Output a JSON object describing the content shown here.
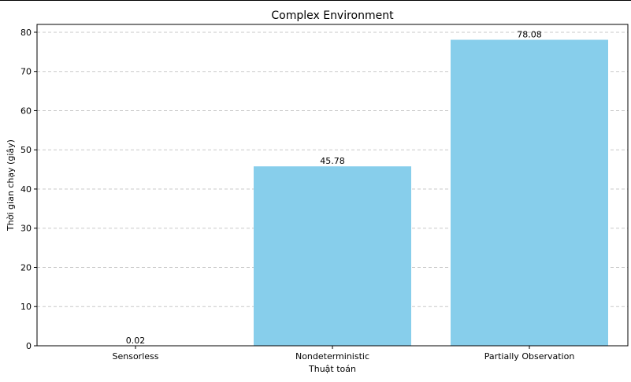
{
  "chart_data": {
    "type": "bar",
    "title": "Complex Environment",
    "xlabel": "Thuật toán",
    "ylabel": "Thời gian chạy (giây)",
    "categories": [
      "Sensorless",
      "Nondeterministic",
      "Partially Observation"
    ],
    "values": [
      0.02,
      45.78,
      78.08
    ],
    "value_labels": [
      "0.02",
      "45.78",
      "78.08"
    ],
    "ylim": [
      0,
      82
    ],
    "yticks": [
      0,
      10,
      20,
      30,
      40,
      50,
      60,
      70,
      80
    ],
    "grid": "y-dashed",
    "bar_color": "#87CEEB"
  }
}
